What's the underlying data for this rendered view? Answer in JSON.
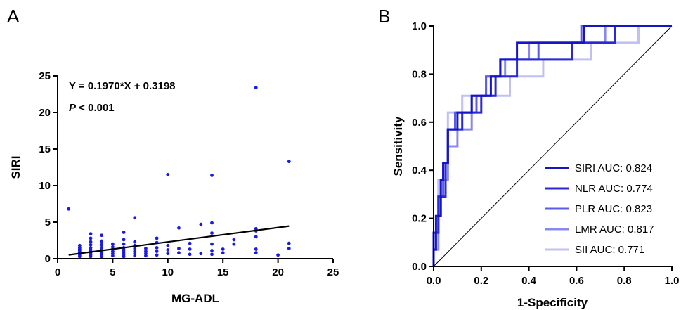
{
  "chart_data": [
    {
      "panel": "A",
      "type": "scatter",
      "xlabel": "MG-ADL",
      "ylabel": "SIRI",
      "xlim": [
        0,
        25
      ],
      "ylim": [
        0,
        25
      ],
      "xticks": [
        0,
        5,
        10,
        15,
        20,
        25
      ],
      "yticks": [
        0,
        5,
        10,
        15,
        20,
        25
      ],
      "point_color": "#1a1ae6",
      "points": [
        [
          1,
          6.8
        ],
        [
          2,
          0.3
        ],
        [
          2,
          0.5
        ],
        [
          2,
          0.7
        ],
        [
          2,
          0.9
        ],
        [
          2,
          1.1
        ],
        [
          2,
          1.3
        ],
        [
          2,
          1.5
        ],
        [
          2,
          1.8
        ],
        [
          3,
          0.3
        ],
        [
          3,
          0.5
        ],
        [
          3,
          0.8
        ],
        [
          3,
          1.0
        ],
        [
          3,
          1.2
        ],
        [
          3,
          1.5
        ],
        [
          3,
          1.9
        ],
        [
          3,
          2.3
        ],
        [
          3,
          2.8
        ],
        [
          3,
          3.4
        ],
        [
          4,
          0.3
        ],
        [
          4,
          0.6
        ],
        [
          4,
          0.8
        ],
        [
          4,
          1.0
        ],
        [
          4,
          1.2
        ],
        [
          4,
          1.5
        ],
        [
          4,
          1.9
        ],
        [
          4,
          2.4
        ],
        [
          4,
          3.2
        ],
        [
          5,
          0.4
        ],
        [
          5,
          0.7
        ],
        [
          5,
          1.0
        ],
        [
          5,
          1.3
        ],
        [
          5,
          1.6
        ],
        [
          5,
          2.0
        ],
        [
          6,
          0.3
        ],
        [
          6,
          0.6
        ],
        [
          6,
          0.9
        ],
        [
          6,
          1.2
        ],
        [
          6,
          1.5
        ],
        [
          6,
          2.0
        ],
        [
          6,
          2.6
        ],
        [
          6,
          3.6
        ],
        [
          7,
          0.4
        ],
        [
          7,
          0.7
        ],
        [
          7,
          1.0
        ],
        [
          7,
          1.4
        ],
        [
          7,
          1.8
        ],
        [
          7,
          2.3
        ],
        [
          7,
          5.6
        ],
        [
          8,
          0.4
        ],
        [
          8,
          0.7
        ],
        [
          8,
          1.0
        ],
        [
          8,
          1.4
        ],
        [
          9,
          0.5
        ],
        [
          9,
          1.0
        ],
        [
          9,
          1.5
        ],
        [
          9,
          2.2
        ],
        [
          9,
          2.8
        ],
        [
          10,
          0.7
        ],
        [
          10,
          1.2
        ],
        [
          10,
          1.8
        ],
        [
          10,
          11.5
        ],
        [
          11,
          0.8
        ],
        [
          11,
          1.4
        ],
        [
          11,
          4.2
        ],
        [
          12,
          0.6
        ],
        [
          12,
          1.3
        ],
        [
          12,
          2.1
        ],
        [
          13,
          0.7
        ],
        [
          13,
          4.7
        ],
        [
          14,
          0.6
        ],
        [
          14,
          1.1
        ],
        [
          14,
          2.0
        ],
        [
          14,
          3.5
        ],
        [
          14,
          4.9
        ],
        [
          14,
          11.4
        ],
        [
          15,
          0.8
        ],
        [
          15,
          1.3
        ],
        [
          16,
          2.0
        ],
        [
          16,
          2.6
        ],
        [
          18,
          0.8
        ],
        [
          18,
          1.3
        ],
        [
          18,
          3.0
        ],
        [
          18,
          3.8
        ],
        [
          18,
          4.1
        ],
        [
          18,
          23.4
        ],
        [
          20,
          0.5
        ],
        [
          21,
          1.4
        ],
        [
          21,
          2.1
        ],
        [
          21,
          13.3
        ]
      ],
      "regression": {
        "slope": 0.197,
        "intercept": 0.3198,
        "x_range": [
          1,
          21
        ]
      },
      "annotations": {
        "equation": "Y = 0.1970*X + 0.3198",
        "p_label": "P",
        "p_rest": " < 0.001"
      }
    },
    {
      "panel": "B",
      "type": "line",
      "xlabel": "1-Specificity",
      "ylabel": "Sensitivity",
      "xlim": [
        0,
        1
      ],
      "ylim": [
        0,
        1
      ],
      "xticks": [
        "0.0",
        "0.2",
        "0.4",
        "0.6",
        "0.8",
        "1.0"
      ],
      "yticks": [
        "0.0",
        "0.2",
        "0.4",
        "0.6",
        "0.8",
        "1.0"
      ],
      "legend_position": "bottom-right",
      "series": [
        {
          "name": "SIRI AUC: 0.824",
          "color": "#1414c8",
          "points": [
            [
              0,
              0
            ],
            [
              0,
              0.07
            ],
            [
              0.01,
              0.07
            ],
            [
              0.01,
              0.21
            ],
            [
              0.03,
              0.21
            ],
            [
              0.03,
              0.36
            ],
            [
              0.04,
              0.36
            ],
            [
              0.04,
              0.43
            ],
            [
              0.06,
              0.43
            ],
            [
              0.06,
              0.57
            ],
            [
              0.1,
              0.57
            ],
            [
              0.1,
              0.64
            ],
            [
              0.16,
              0.64
            ],
            [
              0.16,
              0.71
            ],
            [
              0.24,
              0.71
            ],
            [
              0.24,
              0.79
            ],
            [
              0.28,
              0.79
            ],
            [
              0.28,
              0.86
            ],
            [
              0.35,
              0.86
            ],
            [
              0.35,
              0.93
            ],
            [
              0.63,
              0.93
            ],
            [
              0.63,
              1.0
            ],
            [
              1.0,
              1.0
            ]
          ]
        },
        {
          "name": "NLR AUC: 0.774",
          "color": "#2a2ad4",
          "points": [
            [
              0,
              0
            ],
            [
              0,
              0.14
            ],
            [
              0.02,
              0.14
            ],
            [
              0.02,
              0.29
            ],
            [
              0.05,
              0.29
            ],
            [
              0.05,
              0.43
            ],
            [
              0.06,
              0.43
            ],
            [
              0.06,
              0.57
            ],
            [
              0.12,
              0.57
            ],
            [
              0.12,
              0.64
            ],
            [
              0.2,
              0.64
            ],
            [
              0.2,
              0.71
            ],
            [
              0.26,
              0.71
            ],
            [
              0.26,
              0.79
            ],
            [
              0.35,
              0.79
            ],
            [
              0.35,
              0.86
            ],
            [
              0.58,
              0.86
            ],
            [
              0.58,
              0.93
            ],
            [
              0.76,
              0.93
            ],
            [
              0.76,
              1.0
            ],
            [
              1.0,
              1.0
            ]
          ]
        },
        {
          "name": "PLR AUC: 0.823",
          "color": "#5c5ce6",
          "points": [
            [
              0,
              0
            ],
            [
              0,
              0.14
            ],
            [
              0.02,
              0.14
            ],
            [
              0.02,
              0.29
            ],
            [
              0.04,
              0.29
            ],
            [
              0.04,
              0.43
            ],
            [
              0.06,
              0.43
            ],
            [
              0.06,
              0.57
            ],
            [
              0.09,
              0.57
            ],
            [
              0.09,
              0.64
            ],
            [
              0.18,
              0.64
            ],
            [
              0.18,
              0.71
            ],
            [
              0.22,
              0.71
            ],
            [
              0.22,
              0.79
            ],
            [
              0.28,
              0.79
            ],
            [
              0.28,
              0.86
            ],
            [
              0.44,
              0.86
            ],
            [
              0.44,
              0.93
            ],
            [
              0.62,
              0.93
            ],
            [
              0.62,
              1.0
            ],
            [
              1.0,
              1.0
            ]
          ]
        },
        {
          "name": "LMR AUC: 0.817",
          "color": "#8888ee",
          "points": [
            [
              0,
              0
            ],
            [
              0,
              0.07
            ],
            [
              0.02,
              0.07
            ],
            [
              0.02,
              0.21
            ],
            [
              0.03,
              0.21
            ],
            [
              0.03,
              0.36
            ],
            [
              0.06,
              0.36
            ],
            [
              0.06,
              0.5
            ],
            [
              0.1,
              0.5
            ],
            [
              0.1,
              0.57
            ],
            [
              0.16,
              0.57
            ],
            [
              0.16,
              0.71
            ],
            [
              0.22,
              0.71
            ],
            [
              0.22,
              0.79
            ],
            [
              0.3,
              0.79
            ],
            [
              0.3,
              0.86
            ],
            [
              0.4,
              0.86
            ],
            [
              0.4,
              0.93
            ],
            [
              0.72,
              0.93
            ],
            [
              0.72,
              1.0
            ],
            [
              1.0,
              1.0
            ]
          ]
        },
        {
          "name": "SII AUC: 0.771",
          "color": "#c0c0f4",
          "points": [
            [
              0,
              0
            ],
            [
              0,
              0.14
            ],
            [
              0.02,
              0.14
            ],
            [
              0.02,
              0.36
            ],
            [
              0.06,
              0.36
            ],
            [
              0.06,
              0.64
            ],
            [
              0.12,
              0.64
            ],
            [
              0.12,
              0.71
            ],
            [
              0.32,
              0.71
            ],
            [
              0.32,
              0.79
            ],
            [
              0.46,
              0.79
            ],
            [
              0.46,
              0.86
            ],
            [
              0.66,
              0.86
            ],
            [
              0.66,
              0.93
            ],
            [
              0.86,
              0.93
            ],
            [
              0.86,
              1.0
            ],
            [
              1.0,
              1.0
            ]
          ]
        }
      ]
    }
  ],
  "panels": {
    "a": {
      "letter": "A"
    },
    "b": {
      "letter": "B"
    }
  }
}
